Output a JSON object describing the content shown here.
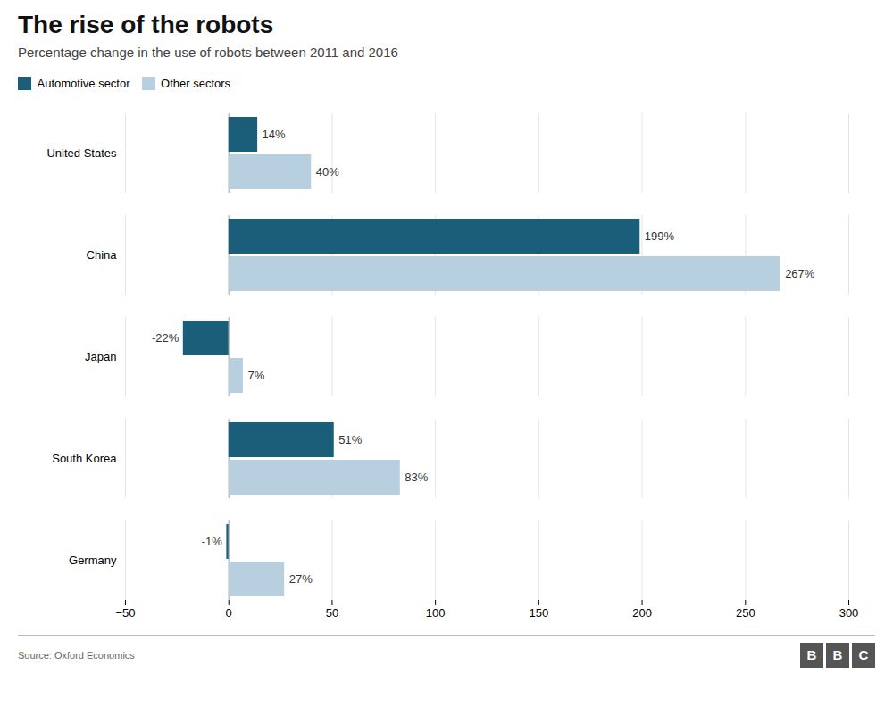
{
  "chart_data": {
    "type": "bar",
    "orientation": "horizontal",
    "title": "The rise of the robots",
    "subtitle": "Percentage change in the use of robots between 2011 and 2016",
    "annotations": [
      "Source: Oxford Economics",
      "BBC"
    ],
    "categories": [
      "United States",
      "China",
      "Japan",
      "South Korea",
      "Germany"
    ],
    "series": [
      {
        "name": "Automotive sector",
        "color": "#1a5e7a",
        "values": [
          14,
          199,
          -22,
          51,
          -1
        ],
        "value_labels": [
          "14%",
          "199%",
          "-22%",
          "51%",
          "-1%"
        ]
      },
      {
        "name": "Other sectors",
        "color": "#b8cfe0",
        "values": [
          40,
          267,
          7,
          83,
          27
        ],
        "value_labels": [
          "40%",
          "267%",
          "7%",
          "83%",
          "27%"
        ]
      }
    ],
    "xlim": [
      -50,
      300
    ],
    "xticks": [
      -50,
      0,
      50,
      100,
      150,
      200,
      250,
      300
    ],
    "grid": true,
    "legend": "upper left",
    "data_labels": true
  }
}
